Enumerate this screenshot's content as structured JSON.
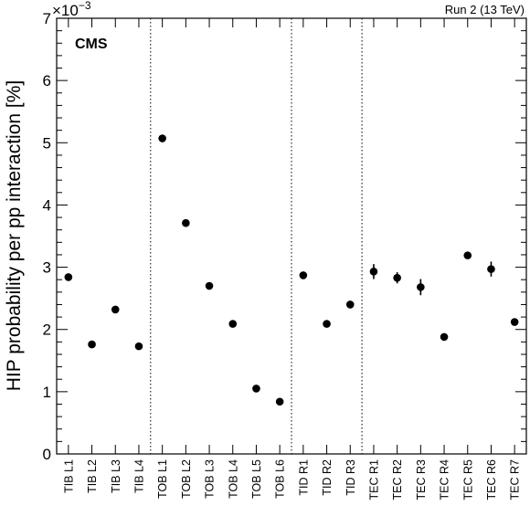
{
  "chart_data": {
    "type": "scatter",
    "ylabel": "HIP probability per pp interaction [%]",
    "y_multiplier": "×10",
    "y_exponent": "−3",
    "top_right_text": "Run 2 (13 TeV)",
    "experiment_label": "CMS",
    "ylim": [
      0,
      7
    ],
    "y_ticks": [
      "0",
      "1",
      "2",
      "3",
      "4",
      "5",
      "6",
      "7"
    ],
    "categories": [
      "TIB L1",
      "TIB L2",
      "TIB L3",
      "TIB L4",
      "TOB L1",
      "TOB L2",
      "TOB L3",
      "TOB L4",
      "TOB L5",
      "TOB L6",
      "TID R1",
      "TID R2",
      "TID R3",
      "TEC R1",
      "TEC R2",
      "TEC R3",
      "TEC R4",
      "TEC R5",
      "TEC R6",
      "TEC R7"
    ],
    "values": [
      2.84,
      1.76,
      2.32,
      1.73,
      5.07,
      3.71,
      2.7,
      2.09,
      1.05,
      0.84,
      2.87,
      2.09,
      2.4,
      2.93,
      2.83,
      2.68,
      1.88,
      3.19,
      2.97,
      2.12
    ],
    "errors": [
      0.03,
      0.03,
      0.03,
      0.03,
      0.03,
      0.03,
      0.03,
      0.03,
      0.03,
      0.03,
      0.03,
      0.03,
      0.03,
      0.12,
      0.09,
      0.13,
      0.05,
      0.04,
      0.12,
      0.05
    ],
    "group_separators_after": [
      "TIB L4",
      "TOB L6",
      "TID R3"
    ],
    "legend": "none",
    "grid": false
  }
}
